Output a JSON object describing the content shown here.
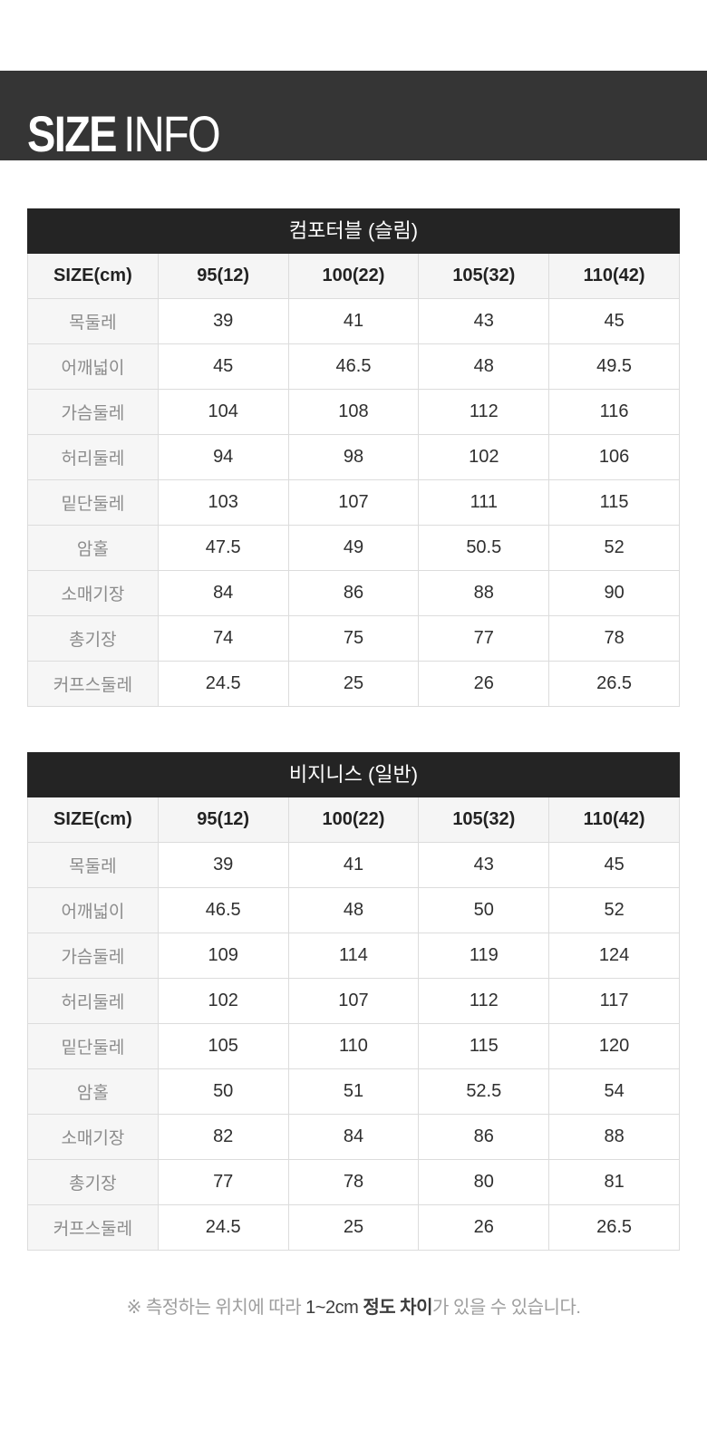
{
  "page": {
    "header": {
      "title_bold": "SIZE",
      "title_light": "INFO"
    },
    "footnote": {
      "prefix": "※ 측정하는 위치에 따라 ",
      "highlight_normal": "1~2cm ",
      "highlight_bold": "정도 차이",
      "suffix": "가 있을 수 있습니다."
    }
  },
  "colors": {
    "hero_band_bg": "#353535",
    "table_title_bg": "#242424",
    "header_row_bg": "#f5f5f5",
    "label_column_bg": "#f6f6f6",
    "border": "#dcdcdc",
    "label_text": "#8b8b8b",
    "value_text": "#2f2f2f",
    "note_gray": "#9e9e9e",
    "note_dark": "#3c3c3c"
  },
  "tables": [
    {
      "title": "컴포터블 (슬림)",
      "columns": [
        "SIZE(cm)",
        "95(12)",
        "100(22)",
        "105(32)",
        "110(42)"
      ],
      "rows": [
        {
          "label": "목둘레",
          "values": [
            "39",
            "41",
            "43",
            "45"
          ]
        },
        {
          "label": "어깨넓이",
          "values": [
            "45",
            "46.5",
            "48",
            "49.5"
          ]
        },
        {
          "label": "가슴둘레",
          "values": [
            "104",
            "108",
            "112",
            "116"
          ]
        },
        {
          "label": "허리둘레",
          "values": [
            "94",
            "98",
            "102",
            "106"
          ]
        },
        {
          "label": "밑단둘레",
          "values": [
            "103",
            "107",
            "111",
            "115"
          ]
        },
        {
          "label": "암홀",
          "values": [
            "47.5",
            "49",
            "50.5",
            "52"
          ]
        },
        {
          "label": "소매기장",
          "values": [
            "84",
            "86",
            "88",
            "90"
          ]
        },
        {
          "label": "총기장",
          "values": [
            "74",
            "75",
            "77",
            "78"
          ]
        },
        {
          "label": "커프스둘레",
          "values": [
            "24.5",
            "25",
            "26",
            "26.5"
          ]
        }
      ]
    },
    {
      "title": "비지니스 (일반)",
      "columns": [
        "SIZE(cm)",
        "95(12)",
        "100(22)",
        "105(32)",
        "110(42)"
      ],
      "rows": [
        {
          "label": "목둘레",
          "values": [
            "39",
            "41",
            "43",
            "45"
          ]
        },
        {
          "label": "어깨넓이",
          "values": [
            "46.5",
            "48",
            "50",
            "52"
          ]
        },
        {
          "label": "가슴둘레",
          "values": [
            "109",
            "114",
            "119",
            "124"
          ]
        },
        {
          "label": "허리둘레",
          "values": [
            "102",
            "107",
            "112",
            "117"
          ]
        },
        {
          "label": "밑단둘레",
          "values": [
            "105",
            "110",
            "115",
            "120"
          ]
        },
        {
          "label": "암홀",
          "values": [
            "50",
            "51",
            "52.5",
            "54"
          ]
        },
        {
          "label": "소매기장",
          "values": [
            "82",
            "84",
            "86",
            "88"
          ]
        },
        {
          "label": "총기장",
          "values": [
            "77",
            "78",
            "80",
            "81"
          ]
        },
        {
          "label": "커프스둘레",
          "values": [
            "24.5",
            "25",
            "26",
            "26.5"
          ]
        }
      ]
    }
  ]
}
